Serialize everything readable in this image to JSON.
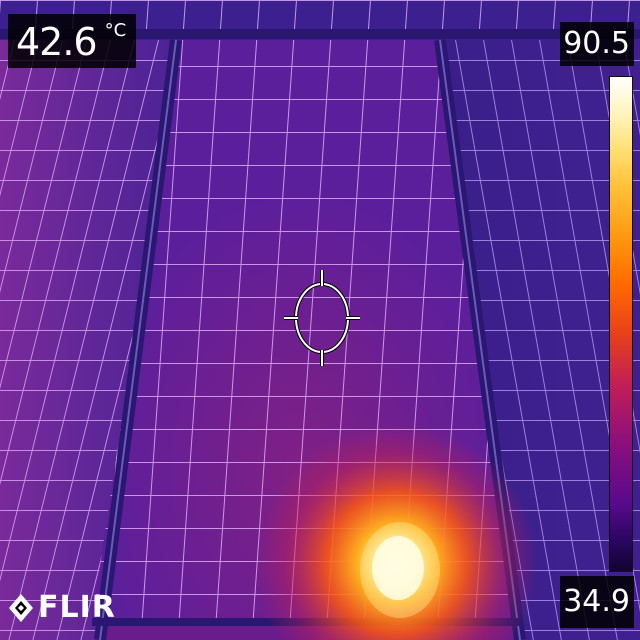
{
  "readout": {
    "value": "42.6",
    "unit": "°C"
  },
  "scale": {
    "max": "90.5",
    "min": "34.9"
  },
  "logo": {
    "text": "FLIR"
  },
  "palette": {
    "cold": "#2a1560",
    "warm": "#c21f55",
    "hot": "#ff9a10",
    "hottest": "#ffffff",
    "grid_line": "#e6b4ff"
  },
  "icons": {
    "spot_meter": "crosshair-circle-icon",
    "logo_mark": "flir-diamond-icon"
  }
}
